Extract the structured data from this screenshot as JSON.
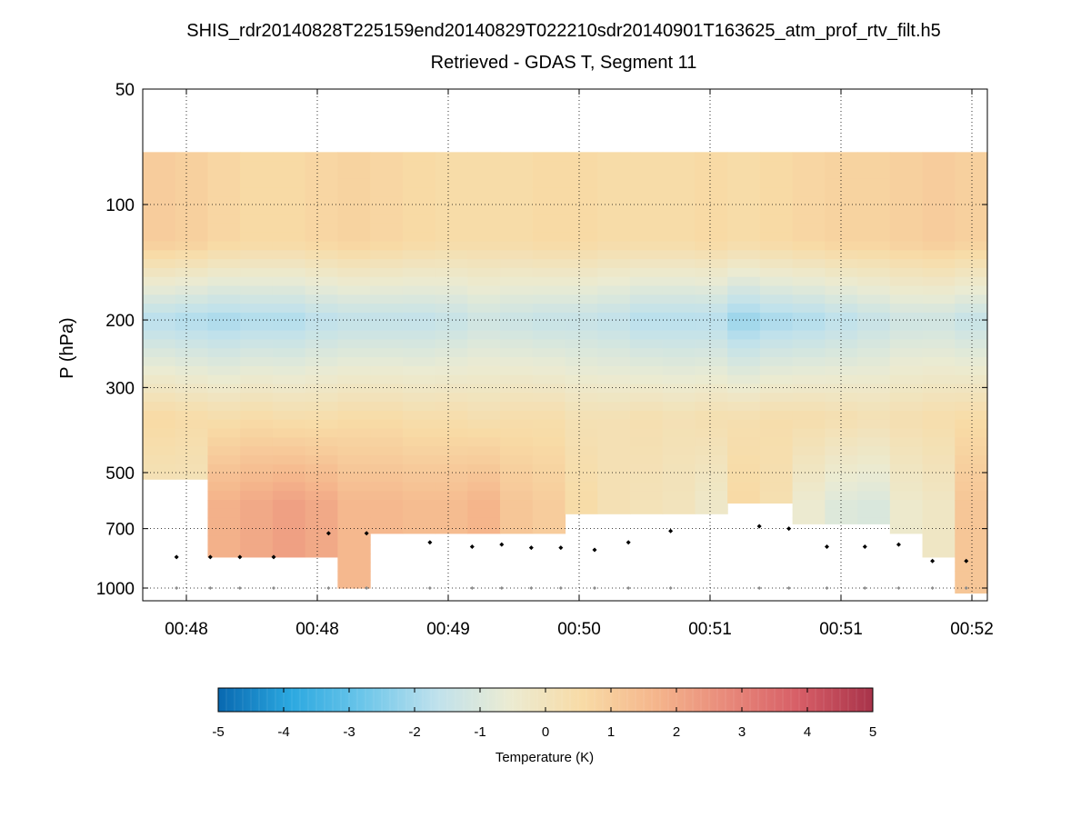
{
  "chart_data": {
    "type": "heatmap",
    "title": "SHIS_rdr20140828T225159end20140829T022210sdr20140901T163625_atm_prof_rtv_filt.h5",
    "subtitle": "Retrieved - GDAS T, Segment 11",
    "ylabel": "P (hPa)",
    "xlabel": "",
    "y_scale": "log",
    "y_direction": "reversed",
    "ylim": [
      50,
      1080
    ],
    "y_ticks": [
      50,
      100,
      200,
      300,
      500,
      700,
      1000
    ],
    "y_tick_labels": [
      "50",
      "100",
      "200",
      "300",
      "500",
      "700",
      "1000"
    ],
    "x_tick_labels": [
      "00:48",
      "00:48",
      "00:49",
      "00:50",
      "00:51",
      "00:51",
      "00:52"
    ],
    "grid": true,
    "colorbar": {
      "label": "Temperature (K)",
      "min": -5,
      "max": 5,
      "tick_labels": [
        "-5",
        "-4",
        "-3",
        "-2",
        "-1",
        "0",
        "1",
        "2",
        "3",
        "4",
        "5"
      ],
      "colormap": "blue-white-red diverging",
      "colors": [
        "#0868b0",
        "#2ba8e0",
        "#6cc6ea",
        "#bfe1ec",
        "#ebebd2",
        "#f8dba6",
        "#f5b68c",
        "#e8897a",
        "#d65d66",
        "#a8334a"
      ]
    },
    "data_top_pressure_hPa": 73,
    "profile_columns": 26,
    "bottom_pressure_hPa": [
      520,
      520,
      830,
      830,
      830,
      830,
      1000,
      720,
      720,
      720,
      720,
      720,
      720,
      640,
      640,
      640,
      640,
      640,
      600,
      600,
      680,
      680,
      680,
      720,
      830,
      1030
    ],
    "profile_anomaly_K": [
      {
        "layer": "73-200 hPa",
        "values": [
          1.0,
          0.9,
          0.7,
          0.6,
          0.6,
          0.7,
          0.8,
          0.7,
          0.6,
          0.5,
          0.5,
          0.5,
          0.6,
          0.6,
          0.5,
          0.5,
          0.5,
          0.6,
          0.5,
          0.6,
          0.7,
          0.8,
          0.8,
          0.9,
          1.0,
          0.9
        ]
      },
      {
        "layer": "150-230 hPa",
        "values": [
          -1.8,
          -1.9,
          -2.0,
          -1.9,
          -1.9,
          -1.7,
          -1.6,
          -1.6,
          -1.6,
          -1.5,
          -1.3,
          -1.4,
          -1.5,
          -1.5,
          -1.6,
          -1.8,
          -1.8,
          -1.8,
          -2.2,
          -2.0,
          -1.9,
          -1.7,
          -1.5,
          -1.3,
          -1.3,
          -1.5
        ]
      },
      {
        "layer": "230-500 hPa",
        "values": [
          0.6,
          0.5,
          0.4,
          0.5,
          0.4,
          0.4,
          0.5,
          0.5,
          0.4,
          0.4,
          0.3,
          0.4,
          0.4,
          0.2,
          0.2,
          0.3,
          0.2,
          0.3,
          0.3,
          0.4,
          0.4,
          0.3,
          0.2,
          0.3,
          0.4,
          0.5
        ]
      },
      {
        "layer": "500-bottom",
        "values": [
          0.0,
          0.0,
          1.8,
          2.0,
          2.2,
          2.0,
          1.6,
          1.6,
          1.5,
          1.5,
          1.7,
          1.2,
          1.0,
          0.5,
          0.2,
          0.1,
          0.0,
          -0.3,
          0.6,
          0.3,
          -0.5,
          -0.9,
          -1.0,
          -0.4,
          -0.2,
          1.2
        ]
      }
    ],
    "surface_markers": {
      "time_fraction": [
        0.04,
        0.08,
        0.115,
        0.155,
        0.22,
        0.265,
        0.34,
        0.39,
        0.425,
        0.46,
        0.495,
        0.535,
        0.575,
        0.625,
        0.73,
        0.765,
        0.81,
        0.855,
        0.895,
        0.935,
        0.975
      ],
      "pressure_hPa": [
        830,
        830,
        830,
        830,
        720,
        720,
        760,
        780,
        770,
        785,
        785,
        795,
        760,
        710,
        690,
        700,
        780,
        780,
        770,
        850,
        850
      ]
    }
  }
}
